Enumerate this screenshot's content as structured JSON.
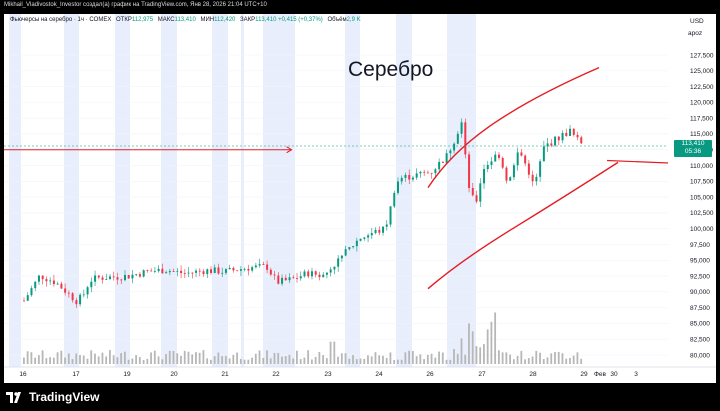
{
  "credit": "Mikhail_Vladivostok_Investor создал(а) график на TradingView.com, Янв 28, 2026 21:04 UTC+10",
  "header": {
    "symbol": "Фьючерсы на серебро · 1ч · COMEX",
    "open_label": "ОТКР",
    "open": "112,975",
    "high_label": "МАКС",
    "high": "113,410",
    "low_label": "МИН",
    "low": "112,420",
    "close_label": "ЗАКР",
    "close": "113,410",
    "change": "+0,415 (+0,37%)",
    "volume_label": "Объём",
    "volume": "2,9 K"
  },
  "axis_header": {
    "currency": "USD",
    "mode": "аpoz"
  },
  "last_price": {
    "value": "113,410",
    "countdown": "05:36"
  },
  "annotation_text": "Серебро",
  "footer": {
    "brand": "TradingView"
  },
  "colors": {
    "up": "#089981",
    "down": "#f23645",
    "drawing": "#e51c23",
    "session_bg": "#e8eefc",
    "volume": "#b7b7b7"
  },
  "chart_data": {
    "type": "candlestick",
    "title": "Серебро",
    "y_ticks": [
      "127,500",
      "125,000",
      "122,500",
      "120,000",
      "117,500",
      "115,000",
      "112,500",
      "110,000",
      "107,500",
      "105,000",
      "102,500",
      "100,000",
      "97,500",
      "95,000",
      "92,500",
      "90,000",
      "87,500",
      "85,000",
      "82,500",
      "80,000"
    ],
    "x_ticks": [
      "16",
      "17",
      "19",
      "20",
      "21",
      "22",
      "23",
      "24",
      "26",
      "27",
      "28",
      "29",
      "30",
      "Фев",
      "3"
    ],
    "ylim": [
      78.5,
      131
    ],
    "price_path": [
      [
        16.0,
        88.6
      ],
      [
        16.3,
        92.6
      ],
      [
        16.6,
        91.5
      ],
      [
        17.0,
        88.5
      ],
      [
        17.25,
        89.5
      ],
      [
        17.5,
        91.8
      ],
      [
        17.8,
        92.2
      ],
      [
        19.0,
        92.5
      ],
      [
        19.4,
        93.2
      ],
      [
        19.8,
        93.5
      ],
      [
        20.2,
        92.9
      ],
      [
        20.6,
        93.4
      ],
      [
        21.0,
        93.2
      ],
      [
        21.4,
        93.8
      ],
      [
        21.8,
        94.0
      ],
      [
        22.0,
        91.5
      ],
      [
        22.3,
        92.0
      ],
      [
        22.6,
        93.0
      ],
      [
        22.9,
        92.5
      ],
      [
        23.0,
        93.5
      ],
      [
        23.3,
        96.0
      ],
      [
        23.6,
        98.5
      ],
      [
        23.9,
        99.5
      ],
      [
        24.2,
        100.0
      ],
      [
        24.4,
        103.0
      ],
      [
        24.6,
        107.0
      ],
      [
        24.8,
        108.0
      ],
      [
        26.0,
        109.0
      ],
      [
        26.3,
        111.5
      ],
      [
        26.5,
        115.0
      ],
      [
        26.6,
        117.0
      ],
      [
        26.7,
        107.5
      ],
      [
        26.85,
        103.5
      ],
      [
        27.0,
        109.5
      ],
      [
        27.3,
        112.0
      ],
      [
        27.5,
        107.0
      ],
      [
        27.7,
        112.5
      ],
      [
        27.9,
        109.0
      ],
      [
        28.0,
        106.5
      ],
      [
        28.2,
        113.0
      ],
      [
        28.5,
        114.5
      ],
      [
        28.7,
        115.5
      ],
      [
        28.85,
        114.0
      ],
      [
        29.0,
        113.41
      ]
    ],
    "annotations": [
      {
        "type": "arrow",
        "from": [
          15.9,
          112.5
        ],
        "to": [
          22.3,
          112.5
        ]
      },
      {
        "type": "upper_channel",
        "from": [
          26.3,
          107.5
        ],
        "to": [
          29.5,
          125.5
        ]
      },
      {
        "type": "lower_channel",
        "from": [
          26.3,
          90.5
        ],
        "to": [
          30.5,
          110.5
        ]
      },
      {
        "type": "level",
        "from": [
          31.5,
          110.8
        ],
        "to": [
          32.2,
          110.3
        ]
      }
    ]
  }
}
